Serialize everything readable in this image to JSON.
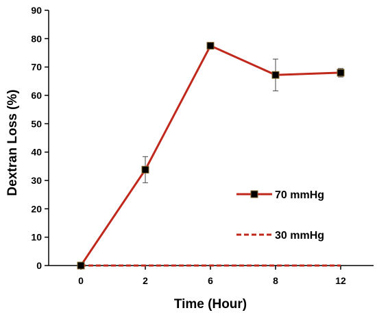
{
  "chart_data": {
    "type": "line",
    "xlabel": "Time (Hour)",
    "ylabel": "Dextran Loss (%)",
    "ylim": [
      0,
      90
    ],
    "y_ticks": [
      "0",
      "10",
      "20",
      "30",
      "40",
      "50",
      "60",
      "70",
      "80",
      "90"
    ],
    "categories": [
      "0",
      "2",
      "6",
      "8",
      "12"
    ],
    "grid": false,
    "legend_position": "right",
    "series": [
      {
        "name": "70 mmHg",
        "values": [
          0,
          33.8,
          77.5,
          67.2,
          68.0
        ],
        "error": [
          0,
          4.6,
          0,
          5.6,
          1.5
        ],
        "color": "#c0281c",
        "line_style": "solid",
        "marker": "square"
      },
      {
        "name": "30 mmHg",
        "values": [
          0,
          0,
          0,
          0,
          0
        ],
        "error": [
          0,
          0,
          0,
          0,
          0
        ],
        "color": "#c0281c",
        "line_style": "dashed",
        "marker": "none"
      }
    ]
  }
}
